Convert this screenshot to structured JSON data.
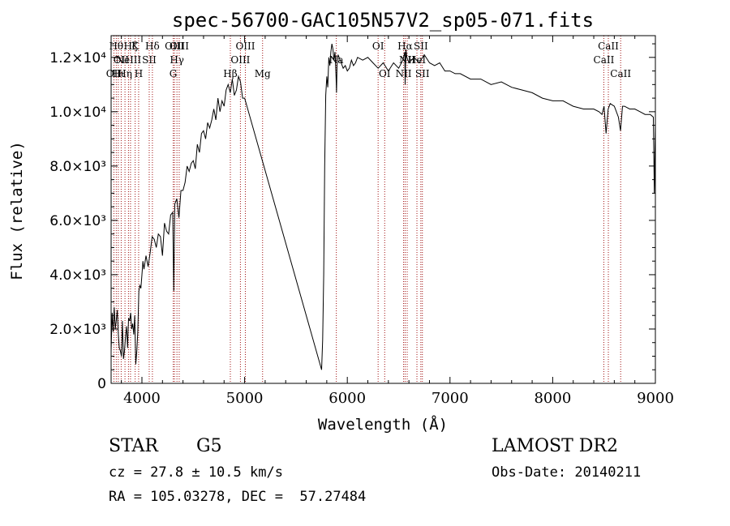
{
  "chart_data": {
    "type": "line",
    "title": "spec-56700-GAC105N57V2_sp05-071.fits",
    "xlabel": "Wavelength (Å)",
    "ylabel": "Flux (relative)",
    "xlim": [
      3700,
      9000
    ],
    "ylim": [
      0,
      12800
    ],
    "x_ticks": [
      4000,
      5000,
      6000,
      7000,
      8000,
      9000
    ],
    "y_ticks": [
      {
        "value": 0,
        "label": "0"
      },
      {
        "value": 2000,
        "label": "2.0×10³"
      },
      {
        "value": 4000,
        "label": "4.0×10³"
      },
      {
        "value": 6000,
        "label": "6.0×10³"
      },
      {
        "value": 8000,
        "label": "8.0×10³"
      },
      {
        "value": 10000,
        "label": "1.0×10⁴"
      },
      {
        "value": 12000,
        "label": "1.2×10⁴"
      }
    ],
    "grid": false,
    "line_color": "#000000",
    "marker_color": "#a01010",
    "series": [
      {
        "x": [
          3700,
          3710,
          3720,
          3730,
          3740,
          3750,
          3760,
          3770,
          3780,
          3790,
          3800,
          3810,
          3820,
          3830,
          3840,
          3850,
          3860,
          3870,
          3880,
          3890,
          3900,
          3910,
          3920,
          3930,
          3940,
          3950,
          3960,
          3970,
          3980,
          3990,
          4000,
          4010,
          4020,
          4040,
          4060,
          4080,
          4100,
          4120,
          4140,
          4160,
          4180,
          4200,
          4220,
          4240,
          4260,
          4280,
          4300,
          4310,
          4320,
          4340,
          4360,
          4380,
          4400,
          4420,
          4440,
          4460,
          4480,
          4500,
          4520,
          4540,
          4560,
          4580,
          4600,
          4620,
          4640,
          4660,
          4680,
          4700,
          4720,
          4740,
          4760,
          4780,
          4800,
          4820,
          4840,
          4860,
          4880,
          4900,
          4920,
          4940,
          4960,
          4980,
          5000,
          5750,
          5760,
          5770,
          5780,
          5790,
          5800,
          5810,
          5820,
          5830,
          5840,
          5850,
          5860,
          5870,
          5880,
          5890,
          5895,
          5900,
          5910,
          5920,
          5940,
          5960,
          5980,
          6000,
          6020,
          6040,
          6060,
          6080,
          6100,
          6150,
          6200,
          6250,
          6300,
          6350,
          6400,
          6450,
          6500,
          6540,
          6560,
          6563,
          6570,
          6580,
          6600,
          6650,
          6700,
          6750,
          6800,
          6850,
          6900,
          6950,
          7000,
          7050,
          7100,
          7200,
          7300,
          7400,
          7500,
          7600,
          7700,
          7800,
          7900,
          8000,
          8100,
          8200,
          8300,
          8400,
          8450,
          8480,
          8500,
          8520,
          8540,
          8560,
          8600,
          8640,
          8660,
          8680,
          8700,
          8750,
          8800,
          8850,
          8900,
          8950,
          8980,
          8990,
          9000
        ],
        "y": [
          1200,
          2600,
          1900,
          2800,
          2000,
          2300,
          2700,
          1800,
          1300,
          1200,
          1000,
          2300,
          900,
          1200,
          1700,
          2100,
          1300,
          2400,
          2300,
          2600,
          2000,
          2200,
          1800,
          2500,
          700,
          1200,
          1900,
          3400,
          3600,
          3500,
          4000,
          4500,
          4200,
          4700,
          4300,
          4800,
          5400,
          5300,
          5000,
          5500,
          5400,
          4700,
          5900,
          5600,
          5500,
          6200,
          6300,
          3400,
          6600,
          6800,
          6100,
          7100,
          7100,
          7400,
          8000,
          7800,
          8100,
          8200,
          7900,
          8800,
          8500,
          9200,
          9300,
          9000,
          9600,
          9400,
          9700,
          10100,
          9700,
          10500,
          10000,
          10400,
          10200,
          10800,
          11000,
          10700,
          11200,
          10600,
          10800,
          11300,
          11100,
          10500,
          10500,
          500,
          1600,
          4000,
          8000,
          10600,
          11300,
          10900,
          12000,
          11700,
          12200,
          12500,
          12300,
          11900,
          12200,
          11300,
          10700,
          11700,
          12100,
          12000,
          11800,
          11600,
          11700,
          11500,
          11600,
          11900,
          11700,
          11800,
          12000,
          11900,
          12000,
          11800,
          11600,
          11800,
          11500,
          11800,
          11600,
          11900,
          12200,
          11000,
          12300,
          12000,
          11800,
          12000,
          11800,
          12100,
          11800,
          11700,
          11800,
          11500,
          11500,
          11400,
          11400,
          11200,
          11200,
          11000,
          11100,
          10900,
          10800,
          10700,
          10500,
          10400,
          10400,
          10200,
          10100,
          10100,
          10000,
          9900,
          10200,
          9200,
          10100,
          10300,
          10200,
          9800,
          9300,
          10200,
          10200,
          10100,
          10100,
          10000,
          9900,
          9900,
          9800,
          7000,
          9600
        ]
      }
    ],
    "line_markers": [
      {
        "wavelength": 3727,
        "label": "OII",
        "row": 3
      },
      {
        "wavelength": 3750,
        "label": "Hθ",
        "row": 1
      },
      {
        "wavelength": 3770,
        "label": "Hι",
        "row": 3
      },
      {
        "wavelength": 3798,
        "label": "OII",
        "row": 2
      },
      {
        "wavelength": 3835,
        "label": "Hη",
        "row": 3
      },
      {
        "wavelength": 3869,
        "label": "NeIII",
        "row": 2
      },
      {
        "wavelength": 3889,
        "label": "Hζ",
        "row": 1
      },
      {
        "wavelength": 3934,
        "label": "K",
        "row": 1
      },
      {
        "wavelength": 3968,
        "label": "H",
        "row": 3
      },
      {
        "wavelength": 4071,
        "label": "SII",
        "row": 2
      },
      {
        "wavelength": 4102,
        "label": "Hδ",
        "row": 1
      },
      {
        "wavelength": 4305,
        "label": "G",
        "row": 3
      },
      {
        "wavelength": 4317,
        "label": "OIII",
        "row": 1
      },
      {
        "wavelength": 4341,
        "label": "Hγ",
        "row": 2
      },
      {
        "wavelength": 4363,
        "label": "OIII",
        "row": 1
      },
      {
        "wavelength": 4861,
        "label": "Hβ",
        "row": 3
      },
      {
        "wavelength": 4959,
        "label": "OIII",
        "row": 2
      },
      {
        "wavelength": 5007,
        "label": "OIII",
        "row": 1
      },
      {
        "wavelength": 5175,
        "label": "Mg",
        "row": 3
      },
      {
        "wavelength": 5893,
        "label": "Na",
        "row": 2
      },
      {
        "wavelength": 6300,
        "label": "OI",
        "row": 1
      },
      {
        "wavelength": 6364,
        "label": "OI",
        "row": 3
      },
      {
        "wavelength": 6548,
        "label": "NII",
        "row": 3
      },
      {
        "wavelength": 6563,
        "label": "Hα",
        "row": 1
      },
      {
        "wavelength": 6583,
        "label": "NII",
        "row": 2
      },
      {
        "wavelength": 6678,
        "label": "HeI",
        "row": 2
      },
      {
        "wavelength": 6716,
        "label": "SII",
        "row": 1
      },
      {
        "wavelength": 6731,
        "label": "SII",
        "row": 3
      },
      {
        "wavelength": 8498,
        "label": "CaII",
        "row": 2
      },
      {
        "wavelength": 8542,
        "label": "CaII",
        "row": 1
      },
      {
        "wavelength": 8662,
        "label": "CaII",
        "row": 3
      }
    ]
  },
  "info": {
    "class": "STAR",
    "subclass": "G5",
    "survey": "LAMOST DR2",
    "cz": "cz = 27.8 ± 10.5 km/s",
    "obs_date": "Obs-Date: 20140211",
    "coords": "RA = 105.03278, DEC =  57.27484"
  }
}
